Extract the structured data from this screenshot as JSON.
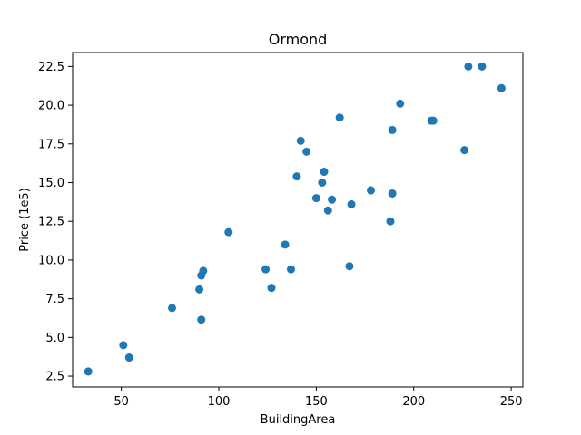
{
  "chart_data": {
    "type": "scatter",
    "title": "Ormond",
    "xlabel": "BuildingArea",
    "ylabel": "Price (1e5)",
    "xlim": [
      25,
      256
    ],
    "ylim": [
      1.8,
      23.4
    ],
    "xticks": [
      50,
      100,
      150,
      200,
      250
    ],
    "yticks": [
      2.5,
      5.0,
      7.5,
      10.0,
      12.5,
      15.0,
      17.5,
      20.0,
      22.5
    ],
    "xtick_labels": [
      "50",
      "100",
      "150",
      "200",
      "250"
    ],
    "ytick_labels": [
      "2.5",
      "5.0",
      "7.5",
      "10.0",
      "12.5",
      "15.0",
      "17.5",
      "20.0",
      "22.5"
    ],
    "grid": false,
    "marker_color": "#1f77b4",
    "series": [
      {
        "points": [
          [
            33,
            2.8
          ],
          [
            51,
            4.5
          ],
          [
            54,
            3.7
          ],
          [
            76,
            6.9
          ],
          [
            90,
            8.1
          ],
          [
            91,
            9.0
          ],
          [
            91,
            6.15
          ],
          [
            92,
            9.3
          ],
          [
            105,
            11.8
          ],
          [
            124,
            9.4
          ],
          [
            127,
            8.2
          ],
          [
            134,
            11.0
          ],
          [
            137,
            9.4
          ],
          [
            140,
            15.4
          ],
          [
            142,
            17.7
          ],
          [
            145,
            17.0
          ],
          [
            150,
            14.0
          ],
          [
            153,
            15.0
          ],
          [
            154,
            15.7
          ],
          [
            156,
            13.2
          ],
          [
            158,
            13.9
          ],
          [
            162,
            19.2
          ],
          [
            167,
            9.6
          ],
          [
            168,
            13.6
          ],
          [
            178,
            14.5
          ],
          [
            188,
            12.5
          ],
          [
            189,
            14.3
          ],
          [
            189,
            18.4
          ],
          [
            193,
            20.1
          ],
          [
            209,
            19.0
          ],
          [
            210,
            19.0
          ],
          [
            226,
            17.1
          ],
          [
            228,
            22.5
          ],
          [
            235,
            22.5
          ],
          [
            245,
            21.1
          ]
        ]
      }
    ]
  }
}
